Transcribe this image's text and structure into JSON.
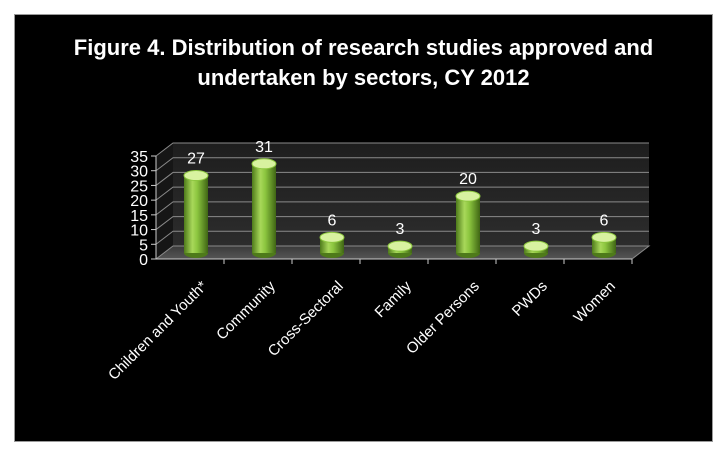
{
  "chart_data": {
    "type": "bar",
    "title_lines": [
      "Figure 4. Distribution of research studies approved and",
      "undertaken by sectors, CY 2012"
    ],
    "categories": [
      "Children and Youth*",
      "Community",
      "Cross-Sectoral",
      "Family",
      "Older Persons",
      "PWDs",
      "Women"
    ],
    "values": [
      27,
      31,
      6,
      3,
      20,
      3,
      6
    ],
    "y_ticks": [
      "0",
      "5",
      "10",
      "15",
      "20",
      "25",
      "30",
      "35"
    ],
    "ylim": [
      0,
      35
    ],
    "grid": true,
    "legend": "none",
    "style": "3d-cylinder",
    "colors": {
      "background": "#000000",
      "bar": "#8cc63f",
      "bar_dark": "#4e7a1a",
      "bar_light": "#d8f2a0",
      "text": "#ffffff",
      "grid": "#8a8a8a"
    }
  }
}
